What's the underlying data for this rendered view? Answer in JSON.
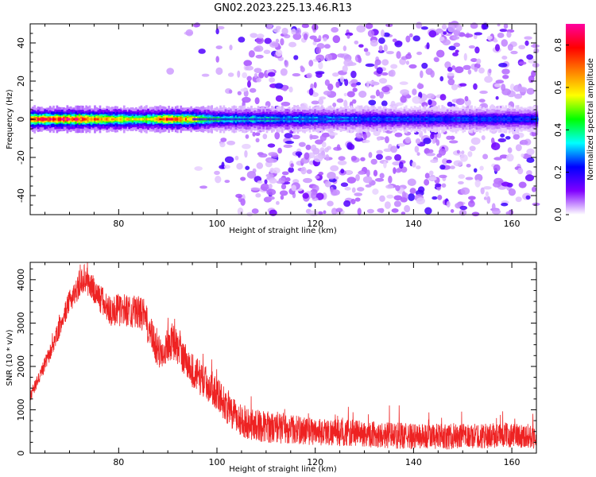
{
  "title": "GN02.2023.225.13.46.R13",
  "chart_data": [
    {
      "type": "heatmap",
      "xlabel": "Height of straight line (km)",
      "ylabel": "Frequency (Hz)",
      "xlim": [
        62,
        165
      ],
      "ylim": [
        -50,
        50
      ],
      "xticks": [
        80,
        100,
        120,
        140,
        160
      ],
      "yticks": [
        -40,
        -20,
        0,
        20,
        40
      ],
      "colorbar": {
        "label": "Normalized spectral amplitude",
        "range": [
          0,
          0.9
        ],
        "ticks": [
          "0.0",
          "0.2",
          "0.4",
          "0.6",
          "0.8"
        ],
        "colormap": [
          "#ffffff",
          "#8000ff",
          "#0000ff",
          "#00ffff",
          "#00ff00",
          "#ffff00",
          "#ff8000",
          "#ff0000",
          "#ff00a0"
        ]
      },
      "band": {
        "center_hz": 0,
        "halfwidth_hz": 2.5,
        "peak_amplitude": [
          {
            "x": 62,
            "a": 0.7
          },
          {
            "x": 65,
            "a": 0.78
          },
          {
            "x": 70,
            "a": 0.82
          },
          {
            "x": 75,
            "a": 0.72
          },
          {
            "x": 80,
            "a": 0.62
          },
          {
            "x": 85,
            "a": 0.55
          },
          {
            "x": 90,
            "a": 0.78
          },
          {
            "x": 95,
            "a": 0.65
          },
          {
            "x": 100,
            "a": 0.45
          },
          {
            "x": 105,
            "a": 0.4
          },
          {
            "x": 110,
            "a": 0.4
          },
          {
            "x": 120,
            "a": 0.35
          },
          {
            "x": 130,
            "a": 0.3
          },
          {
            "x": 140,
            "a": 0.28
          },
          {
            "x": 150,
            "a": 0.28
          },
          {
            "x": 165,
            "a": 0.28
          }
        ]
      },
      "noise_onset_km": 105
    },
    {
      "type": "line",
      "xlabel": "Height of straight line (km)",
      "ylabel": "SNR (10 * v/v)",
      "xlim": [
        62,
        165
      ],
      "ylim": [
        0,
        4400
      ],
      "xticks": [
        80,
        100,
        120,
        140,
        160
      ],
      "yticks": [
        0,
        1000,
        2000,
        3000,
        4000
      ],
      "color": "#ee2222",
      "envelope": [
        {
          "x": 62,
          "y": 1300
        },
        {
          "x": 66,
          "y": 2300
        },
        {
          "x": 70,
          "y": 3500
        },
        {
          "x": 73,
          "y": 4050
        },
        {
          "x": 76,
          "y": 3600
        },
        {
          "x": 78,
          "y": 3300
        },
        {
          "x": 82,
          "y": 3300
        },
        {
          "x": 85,
          "y": 3200
        },
        {
          "x": 88,
          "y": 2300
        },
        {
          "x": 91,
          "y": 2600
        },
        {
          "x": 95,
          "y": 1900
        },
        {
          "x": 98,
          "y": 1600
        },
        {
          "x": 100,
          "y": 1400
        },
        {
          "x": 103,
          "y": 900
        },
        {
          "x": 106,
          "y": 700
        },
        {
          "x": 110,
          "y": 600
        },
        {
          "x": 120,
          "y": 500
        },
        {
          "x": 130,
          "y": 450
        },
        {
          "x": 140,
          "y": 380
        },
        {
          "x": 150,
          "y": 380
        },
        {
          "x": 160,
          "y": 420
        },
        {
          "x": 165,
          "y": 380
        }
      ],
      "noise_amplitude": [
        {
          "x": 62,
          "y": 120
        },
        {
          "x": 75,
          "y": 350
        },
        {
          "x": 90,
          "y": 420
        },
        {
          "x": 105,
          "y": 380
        },
        {
          "x": 120,
          "y": 320
        },
        {
          "x": 165,
          "y": 280
        }
      ]
    }
  ]
}
